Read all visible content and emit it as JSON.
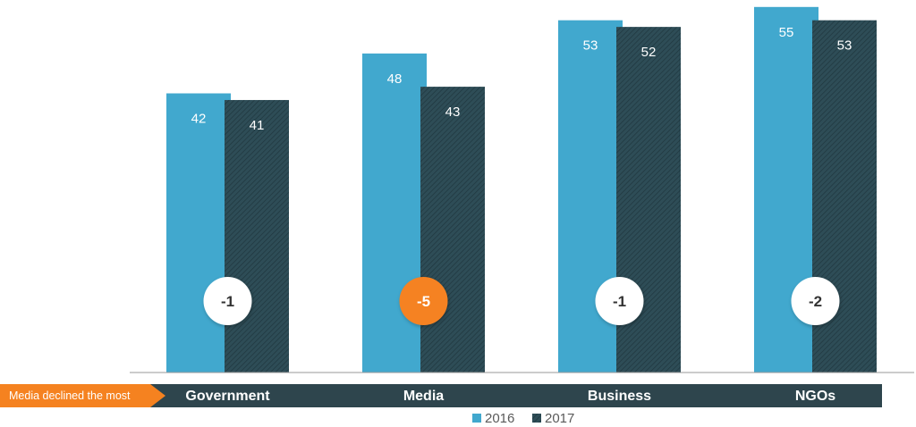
{
  "chart_data": {
    "type": "bar",
    "categories": [
      "Government",
      "Media",
      "Business",
      "NGOs"
    ],
    "series": [
      {
        "name": "2016",
        "values": [
          42,
          48,
          53,
          55
        ],
        "color": "#41A8CE"
      },
      {
        "name": "2017",
        "values": [
          41,
          43,
          52,
          53
        ],
        "color": "#2E4D57"
      }
    ],
    "changes": [
      "-1",
      "-5",
      "-1",
      "-2"
    ],
    "highlight_category": "Media",
    "callout": "Media declined the most",
    "legend_position": "bottom-center",
    "grid": false,
    "ylim": [
      0,
      55
    ]
  },
  "colors": {
    "accent": "#F58220",
    "category_band": "#2E454D",
    "badge_default_bg": "#ffffff",
    "badge_default_text": "#333333",
    "badge_highlight_bg": "#F58220",
    "badge_highlight_text": "#ffffff"
  }
}
